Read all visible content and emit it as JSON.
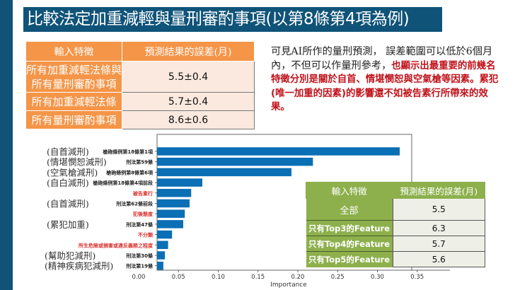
{
  "title": "比較法定加重減輕與量刑審酌事項(以第8條第4項為例)",
  "table_orange": {
    "headers": [
      "輸入特徵",
      "預測結果的誤差(月)"
    ],
    "rows": [
      {
        "feature": "所有加重減輕法條與所有量刑審酌事項",
        "feature_line1": "所有加重減輕法條與",
        "feature_line2": "所有量刑審酌事項",
        "error": "5.5±0.4"
      },
      {
        "feature": "所有加重減輕法條",
        "error": "5.7±0.4"
      },
      {
        "feature": "所有量刑審酌事項",
        "error": "8.6±0.6"
      }
    ]
  },
  "description": {
    "normal": "可見AI所作的量刑預測， 誤差範圍可以低於6個月內，不但可以作量刑參考，",
    "highlight": "也顯示出最重要的前幾名特徵分別是關於自首、情堪憫恕與空氣槍等因素。累犯(唯一加重的因素)的影響還不如被告素行所帶來的效果。"
  },
  "annotations": [
    "(自首減刑)",
    "(情堪憫恕減刑)",
    "(空氣槍減刑)",
    "(自白減刑)",
    "(自首減刑)",
    "(累犯加重)",
    "(幫助犯減刑)",
    "(精神疾病犯減刑)"
  ],
  "chart_data": {
    "type": "bar",
    "orientation": "horizontal",
    "xlabel": "Importance",
    "ylabel": "",
    "xlim": [
      0.0,
      0.37
    ],
    "xticks": [
      "0.00",
      "0.05",
      "0.10",
      "0.15",
      "0.20",
      "0.25",
      "0.30",
      "0.35"
    ],
    "categories": [
      "槍砲條例第18條第1項",
      "刑法第59條",
      "槍砲條例第8條第6項",
      "槍砲條例第18條第4項前段",
      "被告素行",
      "刑法第62條前段",
      "犯後態度",
      "刑法第47條",
      "不分類",
      "所生危險或損害或違反義務之程度",
      "刑法第30條",
      "刑法第19條"
    ],
    "category_colors": [
      "#222222",
      "#222222",
      "#222222",
      "#222222",
      "#d9302c",
      "#222222",
      "#d9302c",
      "#222222",
      "#d9302c",
      "#d9302c",
      "#222222",
      "#222222"
    ],
    "values": [
      0.328,
      0.219,
      0.192,
      0.08,
      0.066,
      0.064,
      0.058,
      0.056,
      0.042,
      0.037,
      0.033,
      0.031
    ],
    "bar_color": "#0a6fb5"
  },
  "table_green": {
    "headers": [
      "輸入特徵",
      "預測結果的誤差(月)"
    ],
    "rows": [
      {
        "feature": "全部",
        "error": "5.5"
      },
      {
        "feature": "只有Top3的Feature",
        "error": "6.3"
      },
      {
        "feature": "只有Top4的Feature",
        "error": "5.7"
      },
      {
        "feature": "只有Top5的Feature",
        "error": "5.6"
      }
    ]
  }
}
